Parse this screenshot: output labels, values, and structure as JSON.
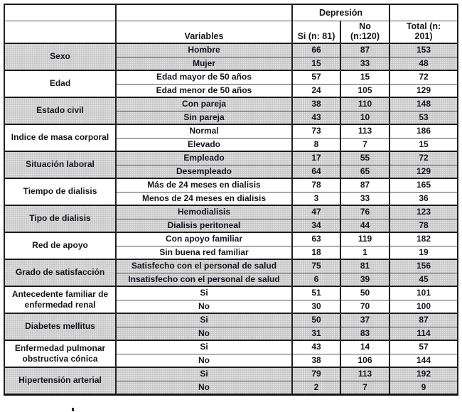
{
  "table": {
    "title_context": "Depresión",
    "header": {
      "group_label": "Depresión",
      "variables_label": "Variables",
      "col_si": "Si (n: 81)",
      "col_no": "No (n:120)",
      "col_total": "Total (n:\n201)"
    },
    "groups": [
      {
        "category": "Sexo",
        "shaded": true,
        "rows": [
          {
            "variable": "Hombre",
            "si": "66",
            "no": "87",
            "total": "153"
          },
          {
            "variable": "Mujer",
            "si": "15",
            "no": "33",
            "total": "48"
          }
        ]
      },
      {
        "category": "Edad",
        "shaded": false,
        "rows": [
          {
            "variable": "Edad mayor de 50 años",
            "si": "57",
            "no": "15",
            "total": "72"
          },
          {
            "variable": "Edad menor de 50 años",
            "si": "24",
            "no": "105",
            "total": "129"
          }
        ]
      },
      {
        "category": "Estado civil",
        "shaded": true,
        "rows": [
          {
            "variable": "Con pareja",
            "si": "38",
            "no": "110",
            "total": "148"
          },
          {
            "variable": "Sin pareja",
            "si": "43",
            "no": "10",
            "total": "53"
          }
        ]
      },
      {
        "category": "Indice de masa corporal",
        "shaded": false,
        "rows": [
          {
            "variable": "Normal",
            "si": "73",
            "no": "113",
            "total": "186"
          },
          {
            "variable": "Elevado",
            "si": "8",
            "no": "7",
            "total": "15"
          }
        ]
      },
      {
        "category": "Situación laboral",
        "shaded": true,
        "rows": [
          {
            "variable": "Empleado",
            "si": "17",
            "no": "55",
            "total": "72"
          },
          {
            "variable": "Desempleado",
            "si": "64",
            "no": "65",
            "total": "129"
          }
        ]
      },
      {
        "category": "Tiempo de dialisis",
        "shaded": false,
        "rows": [
          {
            "variable": "Más de 24 meses en dialisis",
            "si": "78",
            "no": "87",
            "total": "165"
          },
          {
            "variable": "Menos de 24 meses en dialisis",
            "si": "3",
            "no": "33",
            "total": "36"
          }
        ]
      },
      {
        "category": "Tipo de dialisis",
        "shaded": true,
        "rows": [
          {
            "variable": "Hemodialisis",
            "si": "47",
            "no": "76",
            "total": "123"
          },
          {
            "variable": "Dialisis peritoneal",
            "si": "34",
            "no": "44",
            "total": "78"
          }
        ]
      },
      {
        "category": "Red de apoyo",
        "shaded": false,
        "rows": [
          {
            "variable": "Con apoyo familiar",
            "si": "63",
            "no": "119",
            "total": "182"
          },
          {
            "variable": "Sin buena red familiar",
            "si": "18",
            "no": "1",
            "total": "19"
          }
        ]
      },
      {
        "category": "Grado de satisfacción",
        "shaded": true,
        "rows": [
          {
            "variable": "Satisfecho con el personal de salud",
            "si": "75",
            "no": "81",
            "total": "156"
          },
          {
            "variable": "Insatisfecho con el personal de salud",
            "si": "6",
            "no": "39",
            "total": "45"
          }
        ]
      },
      {
        "category": "Antecedente familiar de enfermedad renal",
        "shaded": false,
        "rows": [
          {
            "variable": "Si",
            "si": "51",
            "no": "50",
            "total": "101"
          },
          {
            "variable": "No",
            "si": "30",
            "no": "70",
            "total": "100"
          }
        ]
      },
      {
        "category": "Diabetes mellitus",
        "shaded": true,
        "rows": [
          {
            "variable": "Si",
            "si": "50",
            "no": "37",
            "total": "87"
          },
          {
            "variable": "No",
            "si": "31",
            "no": "83",
            "total": "114"
          }
        ]
      },
      {
        "category": "Enfermedad pulmonar obstructiva cónica",
        "shaded": false,
        "rows": [
          {
            "variable": "Si",
            "si": "43",
            "no": "14",
            "total": "57"
          },
          {
            "variable": "No",
            "si": "38",
            "no": "106",
            "total": "144"
          }
        ]
      },
      {
        "category": "Hipertensión arterial",
        "shaded": true,
        "rows": [
          {
            "variable": "Si",
            "si": "79",
            "no": "113",
            "total": "192"
          },
          {
            "variable": "No",
            "si": "2",
            "no": "7",
            "total": "9"
          }
        ]
      }
    ],
    "colors": {
      "shaded_row_bg": "#c7c7c7",
      "border_heavy": "#1c1c1c",
      "border_light": "#555555",
      "text": "#15151d",
      "background": "#ffffff"
    }
  }
}
